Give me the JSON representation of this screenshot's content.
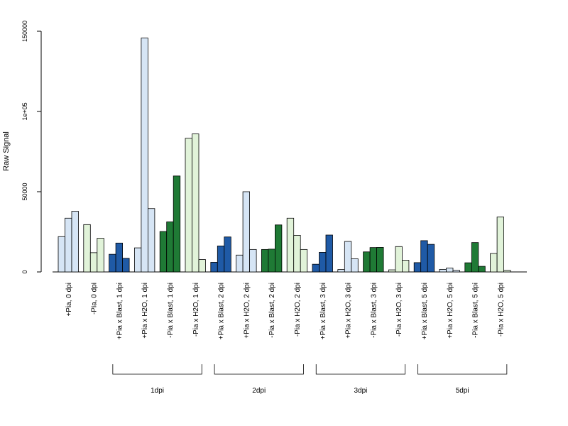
{
  "chart_data": {
    "type": "bar",
    "ylabel": "Raw Signal",
    "ylim": [
      0,
      150000
    ],
    "yticks": [
      0,
      50000,
      100000,
      150000
    ],
    "ytick_labels": [
      "0",
      "50000",
      "1e+05",
      "150000"
    ],
    "grid": false,
    "colors": {
      "light_blue": "#d6e5f5",
      "dark_blue": "#1f5aa6",
      "light_green": "#e1f3d9",
      "dark_green": "#1f7a35"
    },
    "categories": [
      "+Pia, 0 dpi",
      "-Pia, 0 dpi",
      "+Pia x Blast, 1 dpi",
      "+Pia x H2O, 1 dpi",
      "-Pia x Blast, 1 dpi",
      "-Pia x H2O, 1 dpi",
      "+Pia x Blast, 2 dpi",
      "+Pia x H2O, 2 dpi",
      "-Pia x Blast, 2 dpi",
      "-Pia x H2O, 2 dpi",
      "+Pia x Blast, 3 dpi",
      "+Pia x H2O, 3 dpi",
      "-Pia x Blast, 3 dpi",
      "-Pia x H2O, 3 dpi",
      "+Pia x Blast, 5 dpi",
      "+Pia x H2O, 5 dpi",
      "-Pia x Blast, 5 dpi",
      "-Pia x H2O, 5 dpi"
    ],
    "group_colors": [
      "light_blue",
      "light_green",
      "dark_blue",
      "light_blue",
      "dark_green",
      "light_green",
      "dark_blue",
      "light_blue",
      "dark_green",
      "light_green",
      "dark_blue",
      "light_blue",
      "dark_green",
      "light_green",
      "dark_blue",
      "light_blue",
      "dark_green",
      "light_green"
    ],
    "values": [
      [
        22000,
        33500,
        37800
      ],
      [
        29500,
        12000,
        21000
      ],
      [
        11000,
        18000,
        8500
      ],
      [
        15000,
        145800,
        39500
      ],
      [
        25200,
        31200,
        59800
      ],
      [
        83300,
        86000,
        7700
      ],
      [
        6000,
        16200,
        21800
      ],
      [
        10500,
        50000,
        14000
      ],
      [
        14000,
        14200,
        29300
      ],
      [
        33500,
        22800,
        14000
      ],
      [
        4800,
        12200,
        23000
      ],
      [
        1500,
        19000,
        8200
      ],
      [
        12500,
        15200,
        15300
      ],
      [
        1300,
        15800,
        7300
      ],
      [
        5800,
        19500,
        17200
      ],
      [
        1600,
        2400,
        1000
      ],
      [
        5700,
        18300,
        3500
      ],
      [
        11500,
        34200,
        1000
      ]
    ],
    "brackets": [
      {
        "label": "1dpi",
        "from": 2,
        "to": 5
      },
      {
        "label": "2dpi",
        "from": 6,
        "to": 9
      },
      {
        "label": "3dpi",
        "from": 10,
        "to": 13
      },
      {
        "label": "5dpi",
        "from": 14,
        "to": 17
      }
    ]
  }
}
